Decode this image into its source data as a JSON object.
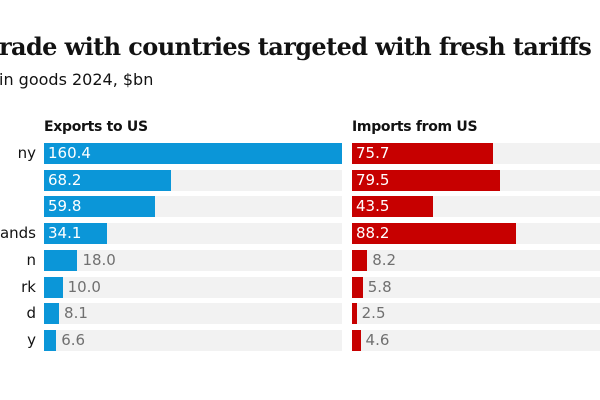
{
  "title": "rade with countries targeted with fresh tariffs",
  "subtitle": "in goods 2024, $bn",
  "colors": {
    "exports": "#0b96d8",
    "imports": "#c70000",
    "track": "#f2f2f2"
  },
  "chart_data": {
    "type": "bar",
    "orientation": "horizontal",
    "title": "rade with countries targeted with fresh tariffs",
    "subtitle": "in goods 2024, $bn",
    "categories": [
      "ny",
      "",
      "",
      "lands",
      "n",
      "rk",
      "d",
      "y"
    ],
    "series": [
      {
        "name": "Exports to US",
        "values": [
          160.4,
          68.2,
          59.8,
          34.1,
          18.0,
          10.0,
          8.1,
          6.6
        ]
      },
      {
        "name": "Imports from US",
        "values": [
          75.7,
          79.5,
          43.5,
          88.2,
          8.2,
          5.8,
          2.5,
          4.6
        ]
      }
    ],
    "value_labels": {
      "exports": [
        "160.4",
        "68.2",
        "59.8",
        "34.1",
        "18.0",
        "10.0",
        "8.1",
        "6.6"
      ],
      "imports": [
        "75.7",
        "79.5",
        "43.5",
        "88.2",
        "8.2",
        "5.8",
        "2.5",
        "4.6"
      ]
    },
    "xlim": [
      0,
      160.4
    ],
    "grid": false,
    "legend": "column headers above each panel"
  }
}
